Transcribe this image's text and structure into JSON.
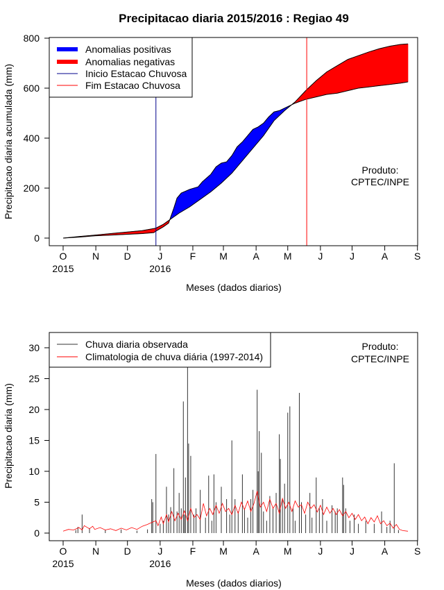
{
  "title": "Precipitacao diaria 2015/2016 : Regiao 49",
  "product": {
    "line1": "Produto:",
    "line2": "CPTEC/INPE"
  },
  "colors": {
    "positive": "#0000ff",
    "negative": "#ff0000",
    "observed": "#333333",
    "climatology": "#ff0000",
    "start": "#00008b",
    "end": "#ff0000"
  },
  "chart_data": [
    {
      "type": "area",
      "xlabel": "Meses (dados diarios)",
      "ylabel": "Precipitacao diaria acumulada (mm)",
      "ylim": [
        0,
        800
      ],
      "yticks": [
        "0",
        "200",
        "400",
        "600",
        "800"
      ],
      "month_labels": [
        "O",
        "N",
        "D",
        "J",
        "F",
        "M",
        "A",
        "M",
        "J",
        "J",
        "A",
        "S"
      ],
      "year_labels": [
        "2015",
        "2016"
      ],
      "legend": [
        "Anomalias positivas",
        "Anomalias negativas",
        "Inicio Estacao Chuvosa",
        "Fim Estacao Chuvosa"
      ],
      "season_start_day": 88,
      "season_end_day": 231,
      "observed_cumulative": [
        [
          0,
          0
        ],
        [
          15,
          4
        ],
        [
          30,
          9
        ],
        [
          45,
          12
        ],
        [
          60,
          15
        ],
        [
          75,
          18
        ],
        [
          86,
          22
        ],
        [
          88,
          28
        ],
        [
          95,
          45
        ],
        [
          100,
          60
        ],
        [
          105,
          120
        ],
        [
          108,
          160
        ],
        [
          112,
          180
        ],
        [
          120,
          195
        ],
        [
          128,
          205
        ],
        [
          132,
          225
        ],
        [
          140,
          255
        ],
        [
          145,
          285
        ],
        [
          150,
          300
        ],
        [
          155,
          305
        ],
        [
          160,
          330
        ],
        [
          165,
          365
        ],
        [
          170,
          385
        ],
        [
          175,
          410
        ],
        [
          180,
          435
        ],
        [
          185,
          445
        ],
        [
          190,
          460
        ],
        [
          195,
          485
        ],
        [
          200,
          505
        ],
        [
          205,
          510
        ],
        [
          210,
          520
        ],
        [
          220,
          540
        ],
        [
          230,
          555
        ],
        [
          240,
          565
        ],
        [
          250,
          575
        ],
        [
          260,
          580
        ],
        [
          270,
          590
        ],
        [
          280,
          600
        ],
        [
          290,
          605
        ],
        [
          300,
          610
        ],
        [
          310,
          615
        ],
        [
          320,
          620
        ],
        [
          327,
          625
        ]
      ],
      "climatology_cumulative": [
        [
          0,
          0
        ],
        [
          15,
          6
        ],
        [
          30,
          12
        ],
        [
          45,
          18
        ],
        [
          60,
          24
        ],
        [
          75,
          30
        ],
        [
          86,
          38
        ],
        [
          88,
          40
        ],
        [
          95,
          55
        ],
        [
          100,
          70
        ],
        [
          105,
          85
        ],
        [
          110,
          100
        ],
        [
          120,
          125
        ],
        [
          130,
          155
        ],
        [
          140,
          185
        ],
        [
          150,
          220
        ],
        [
          160,
          260
        ],
        [
          170,
          310
        ],
        [
          180,
          360
        ],
        [
          190,
          410
        ],
        [
          200,
          470
        ],
        [
          210,
          510
        ],
        [
          220,
          545
        ],
        [
          230,
          590
        ],
        [
          240,
          630
        ],
        [
          250,
          665
        ],
        [
          260,
          690
        ],
        [
          270,
          715
        ],
        [
          280,
          730
        ],
        [
          290,
          745
        ],
        [
          300,
          758
        ],
        [
          310,
          768
        ],
        [
          320,
          775
        ],
        [
          327,
          777
        ]
      ]
    },
    {
      "type": "bar",
      "xlabel": "Meses (dados diarios)",
      "ylabel": "Precipitacao diaria (mm)",
      "ylim": [
        0,
        31.5
      ],
      "yticks": [
        "0",
        "5",
        "10",
        "15",
        "20",
        "25",
        "30"
      ],
      "month_labels": [
        "O",
        "N",
        "D",
        "J",
        "F",
        "M",
        "A",
        "M",
        "J",
        "J",
        "A",
        "S"
      ],
      "year_labels": [
        "2015",
        "2016"
      ],
      "legend": [
        "Chuva diaria observada",
        "Climatologia de chuva diária (1997-2014)"
      ],
      "observed_daily": [
        [
          12,
          0.5
        ],
        [
          14,
          1.0
        ],
        [
          18,
          3.0
        ],
        [
          25,
          0.8
        ],
        [
          40,
          0.5
        ],
        [
          55,
          0.6
        ],
        [
          70,
          0.4
        ],
        [
          80,
          0.6
        ],
        [
          84,
          5.5
        ],
        [
          85,
          5.0
        ],
        [
          88,
          12.8
        ],
        [
          92,
          1.5
        ],
        [
          95,
          2.0
        ],
        [
          98,
          7.5
        ],
        [
          100,
          3.0
        ],
        [
          102,
          4.2
        ],
        [
          105,
          10.5
        ],
        [
          108,
          3.5
        ],
        [
          110,
          6.5
        ],
        [
          112,
          4.0
        ],
        [
          114,
          21.3
        ],
        [
          115,
          3.0
        ],
        [
          116,
          9.0
        ],
        [
          118,
          27.0
        ],
        [
          119,
          14.5
        ],
        [
          121,
          12.5
        ],
        [
          124,
          3.0
        ],
        [
          126,
          4.0
        ],
        [
          130,
          7.0
        ],
        [
          135,
          2.5
        ],
        [
          138,
          9.3
        ],
        [
          141,
          2.0
        ],
        [
          143,
          9.5
        ],
        [
          145,
          5.0
        ],
        [
          150,
          7.5
        ],
        [
          155,
          5.5
        ],
        [
          158,
          3.0
        ],
        [
          160,
          15.0
        ],
        [
          163,
          5.5
        ],
        [
          166,
          3.5
        ],
        [
          170,
          9.5
        ],
        [
          172,
          4.0
        ],
        [
          175,
          2.5
        ],
        [
          178,
          5.5
        ],
        [
          180,
          7.0
        ],
        [
          184,
          23.2
        ],
        [
          185,
          10.0
        ],
        [
          186,
          16.5
        ],
        [
          188,
          13.0
        ],
        [
          190,
          3.5
        ],
        [
          193,
          2.0
        ],
        [
          196,
          6.0
        ],
        [
          199,
          4.0
        ],
        [
          202,
          6.5
        ],
        [
          205,
          16.0
        ],
        [
          206,
          12.0
        ],
        [
          208,
          5.5
        ],
        [
          210,
          8.0
        ],
        [
          213,
          19.5
        ],
        [
          215,
          20.5
        ],
        [
          218,
          4.0
        ],
        [
          220,
          2.0
        ],
        [
          224,
          22.7
        ],
        [
          226,
          5.0
        ],
        [
          230,
          3.0
        ],
        [
          234,
          6.5
        ],
        [
          236,
          2.5
        ],
        [
          240,
          9.0
        ],
        [
          243,
          4.0
        ],
        [
          246,
          5.5
        ],
        [
          250,
          2.0
        ],
        [
          255,
          4.5
        ],
        [
          258,
          3.5
        ],
        [
          260,
          4.0
        ],
        [
          265,
          9.0
        ],
        [
          266,
          7.8
        ],
        [
          268,
          4.0
        ],
        [
          272,
          2.0
        ],
        [
          276,
          3.0
        ],
        [
          280,
          1.5
        ],
        [
          287,
          2.0
        ],
        [
          295,
          1.5
        ],
        [
          302,
          3.5
        ],
        [
          307,
          1.0
        ],
        [
          310,
          2.0
        ],
        [
          314,
          11.3
        ],
        [
          318,
          0.5
        ]
      ],
      "climatology_daily": [
        [
          0,
          0.3
        ],
        [
          5,
          0.6
        ],
        [
          10,
          0.5
        ],
        [
          15,
          0.9
        ],
        [
          18,
          0.5
        ],
        [
          20,
          1.2
        ],
        [
          25,
          0.7
        ],
        [
          28,
          1.1
        ],
        [
          30,
          0.6
        ],
        [
          35,
          0.9
        ],
        [
          40,
          0.5
        ],
        [
          45,
          0.7
        ],
        [
          50,
          0.4
        ],
        [
          55,
          0.8
        ],
        [
          60,
          0.5
        ],
        [
          65,
          0.9
        ],
        [
          70,
          0.6
        ],
        [
          75,
          1.1
        ],
        [
          80,
          1.4
        ],
        [
          85,
          1.8
        ],
        [
          88,
          2.0
        ],
        [
          90,
          1.2
        ],
        [
          93,
          2.6
        ],
        [
          95,
          1.5
        ],
        [
          98,
          3.0
        ],
        [
          100,
          1.8
        ],
        [
          103,
          3.5
        ],
        [
          106,
          2.0
        ],
        [
          109,
          3.2
        ],
        [
          112,
          2.2
        ],
        [
          115,
          3.6
        ],
        [
          118,
          2.0
        ],
        [
          121,
          4.0
        ],
        [
          124,
          2.5
        ],
        [
          127,
          3.0
        ],
        [
          130,
          2.2
        ],
        [
          133,
          4.8
        ],
        [
          136,
          2.8
        ],
        [
          139,
          4.0
        ],
        [
          142,
          3.0
        ],
        [
          145,
          4.5
        ],
        [
          148,
          3.2
        ],
        [
          151,
          4.8
        ],
        [
          154,
          3.5
        ],
        [
          157,
          4.0
        ],
        [
          160,
          3.0
        ],
        [
          163,
          4.5
        ],
        [
          166,
          3.2
        ],
        [
          169,
          5.0
        ],
        [
          172,
          3.8
        ],
        [
          175,
          5.2
        ],
        [
          178,
          3.5
        ],
        [
          181,
          4.8
        ],
        [
          184,
          6.8
        ],
        [
          187,
          4.2
        ],
        [
          190,
          5.0
        ],
        [
          193,
          3.5
        ],
        [
          196,
          5.5
        ],
        [
          199,
          4.0
        ],
        [
          202,
          4.8
        ],
        [
          205,
          3.2
        ],
        [
          208,
          5.6
        ],
        [
          211,
          4.0
        ],
        [
          214,
          5.0
        ],
        [
          217,
          3.5
        ],
        [
          220,
          5.2
        ],
        [
          223,
          4.2
        ],
        [
          226,
          4.6
        ],
        [
          229,
          3.2
        ],
        [
          232,
          5.0
        ],
        [
          235,
          4.0
        ],
        [
          238,
          4.6
        ],
        [
          241,
          3.4
        ],
        [
          244,
          4.5
        ],
        [
          247,
          3.0
        ],
        [
          250,
          4.2
        ],
        [
          253,
          3.2
        ],
        [
          256,
          4.0
        ],
        [
          259,
          3.0
        ],
        [
          262,
          3.8
        ],
        [
          265,
          2.8
        ],
        [
          268,
          3.5
        ],
        [
          271,
          2.5
        ],
        [
          274,
          3.2
        ],
        [
          277,
          2.2
        ],
        [
          280,
          3.0
        ],
        [
          283,
          2.0
        ],
        [
          286,
          2.6
        ],
        [
          289,
          1.5
        ],
        [
          292,
          2.5
        ],
        [
          295,
          1.8
        ],
        [
          298,
          2.8
        ],
        [
          301,
          1.5
        ],
        [
          304,
          2.0
        ],
        [
          307,
          1.2
        ],
        [
          310,
          1.6
        ],
        [
          313,
          0.8
        ],
        [
          316,
          1.4
        ],
        [
          319,
          0.6
        ],
        [
          322,
          0.4
        ],
        [
          327,
          0.3
        ]
      ]
    }
  ]
}
